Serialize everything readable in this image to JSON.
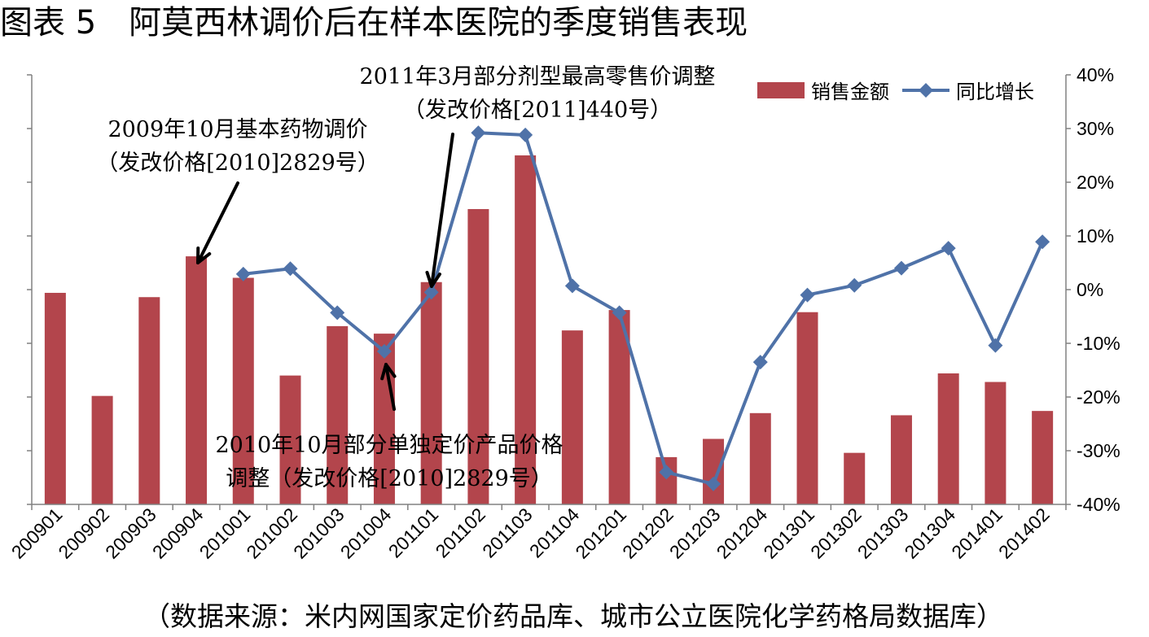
{
  "title": "图表 5　阿莫西林调价后在样本医院的季度销售表现",
  "source": "（数据来源：米内网国家定价药品库、城市公立医院化学药格局数据库）",
  "colors": {
    "bar": "#b3454c",
    "line": "#4f72a8",
    "axis": "#808080",
    "arrow": "#000000"
  },
  "chart_data": {
    "type": "bar",
    "categories": [
      "200901",
      "200902",
      "200903",
      "200904",
      "201001",
      "201002",
      "201003",
      "201004",
      "201101",
      "201102",
      "201103",
      "201104",
      "201201",
      "201202",
      "201203",
      "201204",
      "201301",
      "201302",
      "201303",
      "201304",
      "201401",
      "201402"
    ],
    "series": [
      {
        "name": "销售金额",
        "type": "bar",
        "axis": "left",
        "values": [
          19.7,
          10.1,
          19.3,
          23.1,
          21.1,
          12.0,
          16.6,
          15.9,
          20.7,
          27.5,
          32.5,
          16.2,
          18.1,
          4.4,
          6.1,
          8.5,
          17.9,
          4.8,
          8.3,
          12.2,
          11.4,
          8.7
        ]
      },
      {
        "name": "同比增长",
        "type": "line",
        "axis": "right",
        "marker": "diamond",
        "values": [
          null,
          null,
          null,
          null,
          2.9,
          3.9,
          -4.3,
          -11.5,
          -0.5,
          29.2,
          28.8,
          0.7,
          -4.3,
          -34.0,
          -36.2,
          -13.5,
          -1.0,
          0.8,
          4.0,
          7.7,
          -10.4,
          8.9
        ]
      }
    ],
    "y_left_range": [
      0,
      40
    ],
    "y_right_range": [
      -40,
      40
    ],
    "y_right_ticks": [
      "40%",
      "30%",
      "20%",
      "10%",
      "0%",
      "-10%",
      "-20%",
      "-30%",
      "-40%"
    ],
    "grid": false,
    "legend": "top-right",
    "annotations": [
      {
        "lines": [
          "2009年10月基本药物调价",
          "（发改价格[2010]2829号）"
        ],
        "points_to": "200904"
      },
      {
        "lines": [
          "2011年3月部分剂型最高零售价调整",
          "（发改价格[2011]440号）"
        ],
        "points_to": "201101"
      },
      {
        "lines": [
          "2010年10月部分单独定价产品价格",
          "调整（发改价格[2010]2829号）"
        ],
        "points_to": "201004"
      }
    ]
  }
}
